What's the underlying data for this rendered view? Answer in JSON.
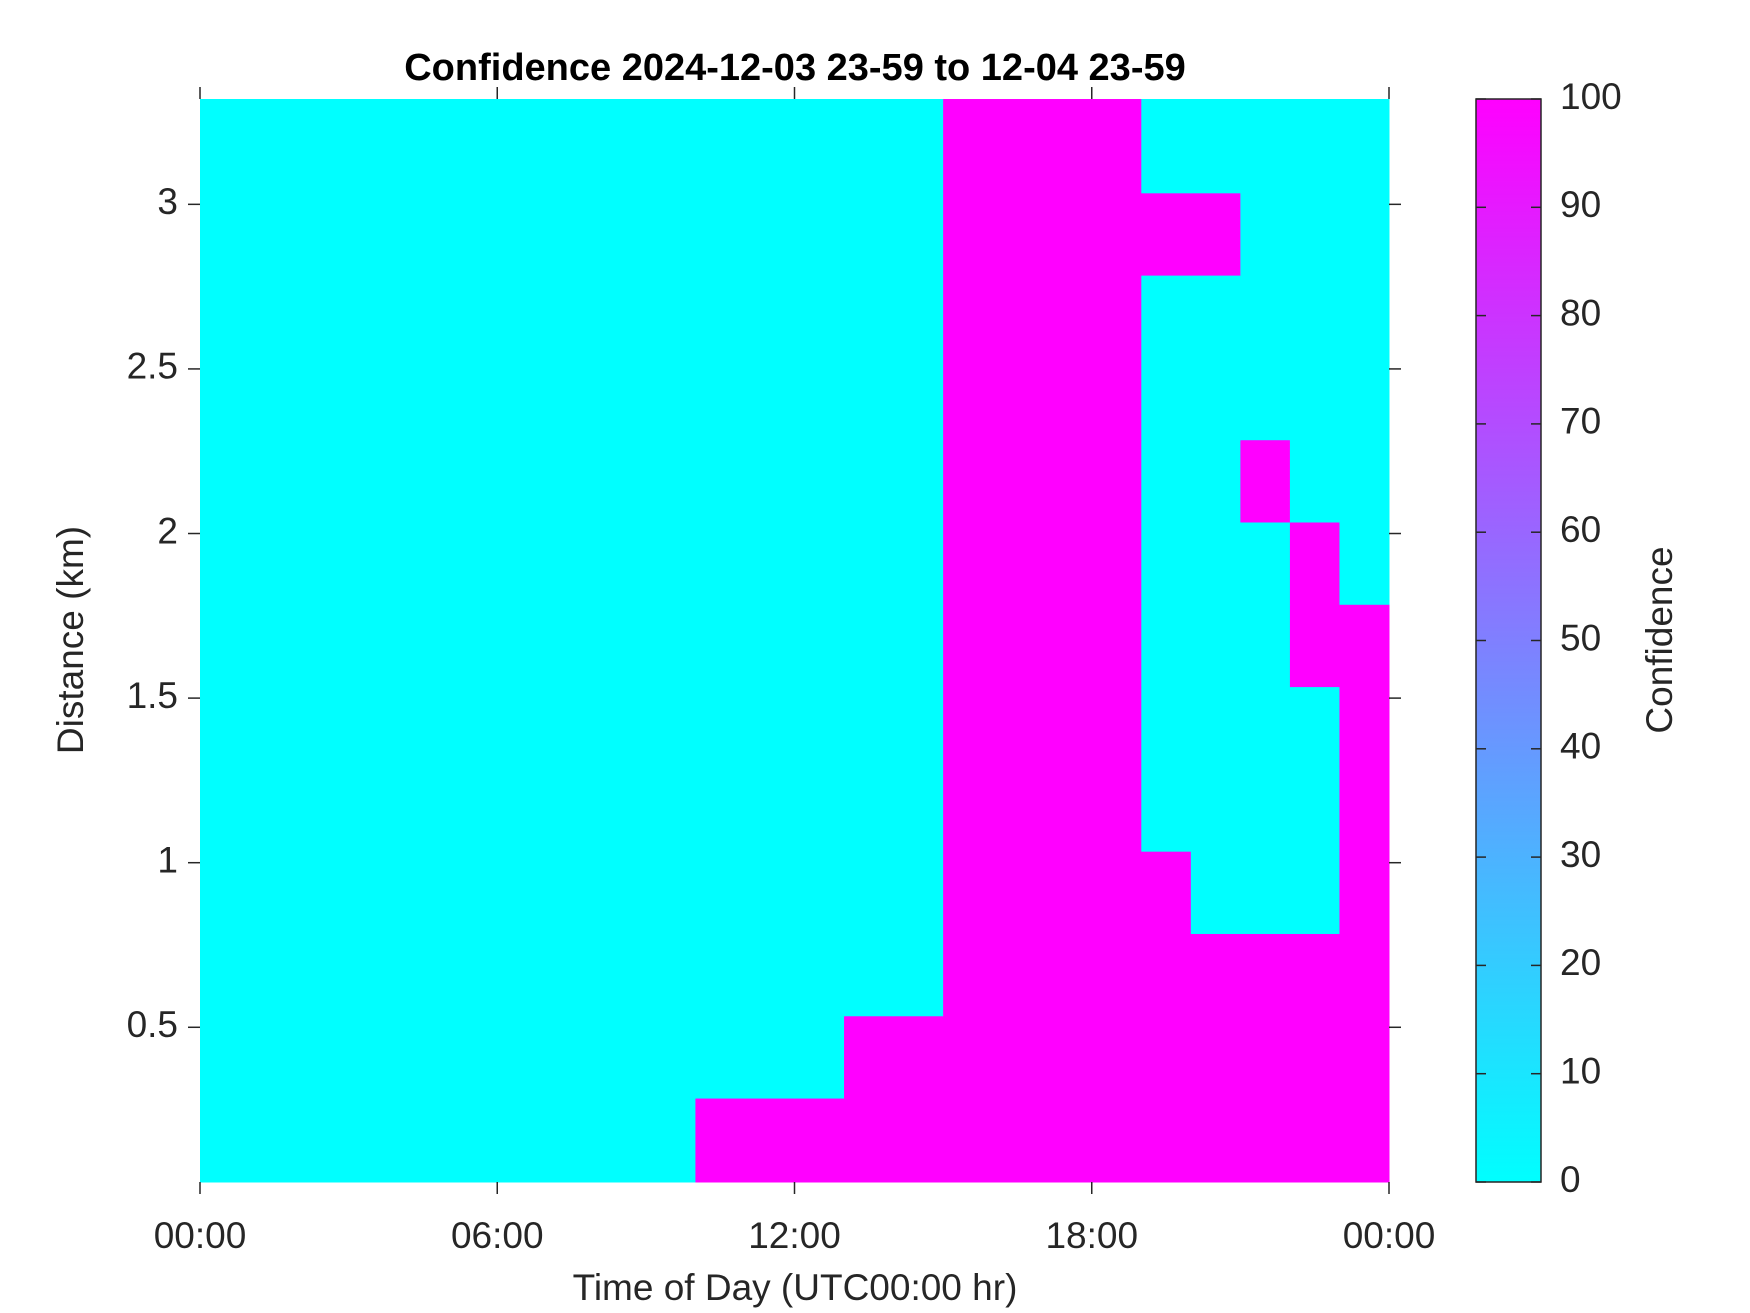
{
  "chart_data": {
    "type": "heatmap",
    "title": "Confidence 2024-12-03 23-59 to 12-04 23-59",
    "x_label": "Time of Day (UTC00:00 hr)",
    "y_label": "Distance (km)",
    "colorbar_label": "Confidence",
    "x": [
      0.5,
      1.5,
      2.5,
      3.5,
      4.5,
      5.5,
      6.5,
      7.5,
      8.5,
      9.5,
      10.5,
      11.5,
      12.5,
      13.5,
      14.5,
      15.5,
      16.5,
      17.5,
      18.5,
      19.5,
      20.5,
      21.5,
      22.5,
      23.5
    ],
    "y": [
      0.16,
      0.41,
      0.66,
      0.91,
      1.16,
      1.41,
      1.66,
      1.91,
      2.16,
      2.41,
      2.66,
      2.91,
      3.16
    ],
    "z": [
      [
        0,
        0,
        0,
        0,
        0,
        0,
        0,
        0,
        0,
        0,
        100,
        100,
        100,
        100,
        100,
        100,
        100,
        100,
        100,
        100,
        100,
        100,
        100,
        100
      ],
      [
        0,
        0,
        0,
        0,
        0,
        0,
        0,
        0,
        0,
        0,
        0,
        0,
        0,
        100,
        100,
        100,
        100,
        100,
        100,
        100,
        100,
        100,
        100,
        100
      ],
      [
        0,
        0,
        0,
        0,
        0,
        0,
        0,
        0,
        0,
        0,
        0,
        0,
        0,
        0,
        0,
        100,
        100,
        100,
        100,
        100,
        100,
        100,
        100,
        100
      ],
      [
        0,
        0,
        0,
        0,
        0,
        0,
        0,
        0,
        0,
        0,
        0,
        0,
        0,
        0,
        0,
        100,
        100,
        100,
        100,
        100,
        0,
        0,
        0,
        100
      ],
      [
        0,
        0,
        0,
        0,
        0,
        0,
        0,
        0,
        0,
        0,
        0,
        0,
        0,
        0,
        0,
        100,
        100,
        100,
        100,
        0,
        0,
        0,
        0,
        100
      ],
      [
        0,
        0,
        0,
        0,
        0,
        0,
        0,
        0,
        0,
        0,
        0,
        0,
        0,
        0,
        0,
        100,
        100,
        100,
        100,
        0,
        0,
        0,
        0,
        100
      ],
      [
        0,
        0,
        0,
        0,
        0,
        0,
        0,
        0,
        0,
        0,
        0,
        0,
        0,
        0,
        0,
        100,
        100,
        100,
        100,
        0,
        0,
        0,
        100,
        100
      ],
      [
        0,
        0,
        0,
        0,
        0,
        0,
        0,
        0,
        0,
        0,
        0,
        0,
        0,
        0,
        0,
        100,
        100,
        100,
        100,
        0,
        0,
        0,
        100,
        0
      ],
      [
        0,
        0,
        0,
        0,
        0,
        0,
        0,
        0,
        0,
        0,
        0,
        0,
        0,
        0,
        0,
        100,
        100,
        100,
        100,
        0,
        0,
        100,
        0,
        0
      ],
      [
        0,
        0,
        0,
        0,
        0,
        0,
        0,
        0,
        0,
        0,
        0,
        0,
        0,
        0,
        0,
        100,
        100,
        100,
        100,
        0,
        0,
        0,
        0,
        0
      ],
      [
        0,
        0,
        0,
        0,
        0,
        0,
        0,
        0,
        0,
        0,
        0,
        0,
        0,
        0,
        0,
        100,
        100,
        100,
        100,
        0,
        0,
        0,
        0,
        0
      ],
      [
        0,
        0,
        0,
        0,
        0,
        0,
        0,
        0,
        0,
        0,
        0,
        0,
        0,
        0,
        0,
        100,
        100,
        100,
        100,
        100,
        100,
        0,
        0,
        0
      ],
      [
        0,
        0,
        0,
        0,
        0,
        0,
        0,
        0,
        0,
        0,
        0,
        0,
        0,
        0,
        0,
        100,
        100,
        100,
        100,
        0,
        0,
        0,
        0,
        0
      ]
    ],
    "xlim": [
      0,
      24
    ],
    "xticks": [
      {
        "value": 0,
        "label": "00:00"
      },
      {
        "value": 6,
        "label": "06:00"
      },
      {
        "value": 12,
        "label": "12:00"
      },
      {
        "value": 18,
        "label": "18:00"
      },
      {
        "value": 24,
        "label": "00:00"
      }
    ],
    "ylim": [
      0.03,
      3.32
    ],
    "yticks": [
      0.5,
      1,
      1.5,
      2,
      2.5,
      3
    ],
    "zlim": [
      0,
      100
    ],
    "zticks": [
      0,
      10,
      20,
      30,
      40,
      50,
      60,
      70,
      80,
      90,
      100
    ],
    "colormap": [
      "#00ffff",
      "#ff00ff"
    ]
  }
}
